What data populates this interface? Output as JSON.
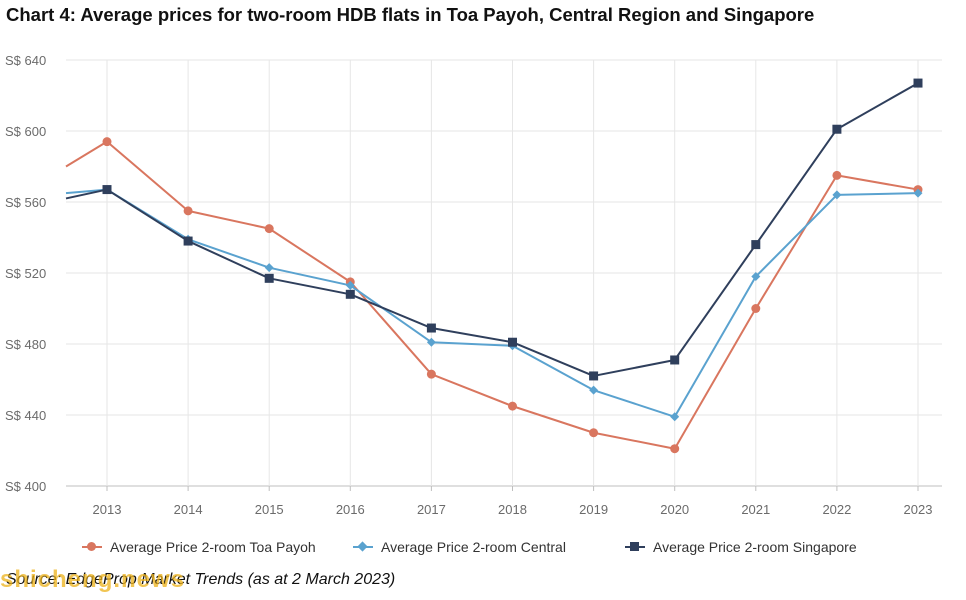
{
  "title": "Chart 4: Average prices for two-room HDB flats in Toa Payoh, Central Region and Singapore",
  "source": "Source: EdgeProp Market Trends (as at 2 March 2023)",
  "watermark": "shicheng.news",
  "chart_data": {
    "type": "line",
    "x": [
      "2013",
      "2014",
      "2015",
      "2016",
      "2017",
      "2018",
      "2019",
      "2020",
      "2021",
      "2022",
      "2023"
    ],
    "y_ticks": [
      "S$ 400",
      "S$ 440",
      "S$ 480",
      "S$ 520",
      "S$ 560",
      "S$ 600",
      "S$ 640"
    ],
    "ylim": [
      400,
      640
    ],
    "grid": true,
    "legend_position": "bottom",
    "series": [
      {
        "name": "Average Price 2-room Toa Payoh",
        "color": "#d9765f",
        "marker": "circle",
        "start_value": 580,
        "values": [
          594,
          555,
          545,
          515,
          463,
          445,
          430,
          421,
          500,
          575,
          567
        ]
      },
      {
        "name": "Average Price 2-room Central",
        "color": "#5aa2cf",
        "marker": "diamond",
        "start_value": 565,
        "values": [
          567,
          539,
          523,
          513,
          481,
          479,
          454,
          439,
          518,
          564,
          565
        ]
      },
      {
        "name": "Average Price 2-room Singapore",
        "color": "#2f3f5c",
        "marker": "square",
        "start_value": 562,
        "values": [
          567,
          538,
          517,
          508,
          489,
          481,
          462,
          471,
          536,
          601,
          627
        ]
      }
    ]
  }
}
